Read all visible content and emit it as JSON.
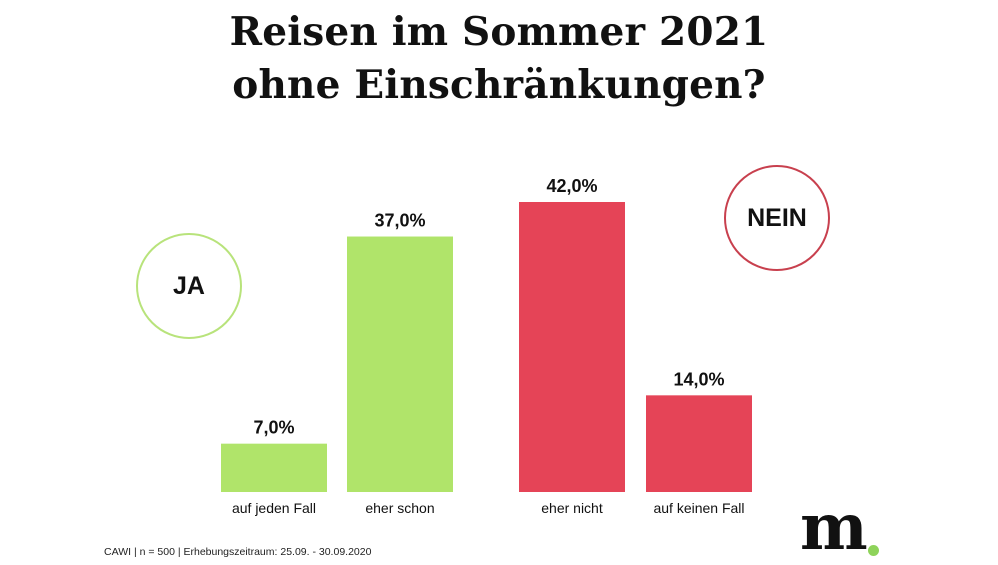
{
  "title": {
    "line1": "Reisen im Sommer 2021",
    "line2": "ohne Einschränkungen?"
  },
  "groups": {
    "yes": {
      "label": "JA",
      "color": "#b8e37b"
    },
    "no": {
      "label": "NEIN",
      "color": "#c8404e"
    }
  },
  "chart_data": {
    "type": "bar",
    "title": "Reisen im Sommer 2021 ohne Einschränkungen?",
    "categories": [
      "auf jeden Fall",
      "eher schon",
      "eher nicht",
      "auf keinen Fall"
    ],
    "values": [
      7.0,
      37.0,
      42.0,
      14.0
    ],
    "value_labels": [
      "7,0%",
      "37,0%",
      "42,0%",
      "14,0%"
    ],
    "colors": [
      "#b0e46a",
      "#b0e46a",
      "#e54457",
      "#e54457"
    ],
    "groups": [
      "JA",
      "JA",
      "NEIN",
      "NEIN"
    ],
    "ylim": [
      0,
      42
    ],
    "grid": false,
    "xlabel": "",
    "ylabel": ""
  },
  "footer": "CAWI | n = 500 | Erhebungszeitraum: 25.09. - 30.09.2020",
  "logo": {
    "text": "m",
    "dot_color": "#8ed35a"
  }
}
